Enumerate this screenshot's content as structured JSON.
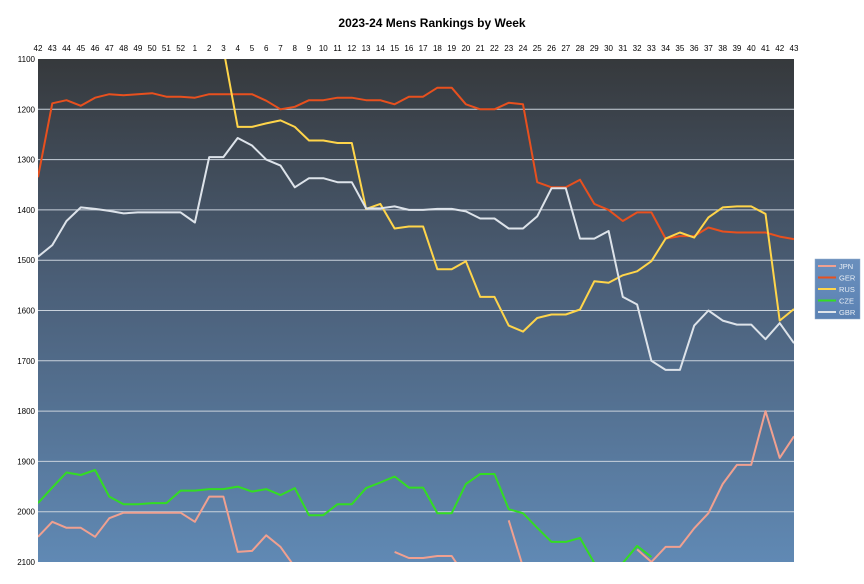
{
  "chart_data": {
    "type": "line",
    "title": "2023-24 Mens Rankings by Week",
    "xlabel": "",
    "ylabel": "",
    "x": [
      "42",
      "43",
      "44",
      "45",
      "46",
      "47",
      "48",
      "49",
      "50",
      "51",
      "52",
      "1",
      "2",
      "3",
      "4",
      "5",
      "6",
      "7",
      "8",
      "9",
      "10",
      "11",
      "12",
      "13",
      "14",
      "15",
      "16",
      "17",
      "18",
      "19",
      "20",
      "21",
      "22",
      "23",
      "24",
      "25",
      "26",
      "27",
      "28",
      "29",
      "30",
      "31",
      "32",
      "33",
      "34",
      "35",
      "36",
      "37",
      "38",
      "39",
      "40",
      "41",
      "42",
      "43"
    ],
    "ylim": [
      1100,
      2100
    ],
    "y_inverted": true,
    "y_ticks": [
      1100,
      1200,
      1300,
      1400,
      1500,
      1600,
      1700,
      1800,
      1900,
      2000,
      2100
    ],
    "grid": true,
    "legend_position": "right",
    "series": [
      {
        "name": "JPN",
        "color": "#f0a090",
        "values": [
          2050,
          2020,
          2032,
          2032,
          2050,
          2013,
          2002,
          2002,
          2002,
          2002,
          2002,
          2020,
          1970,
          1970,
          2080,
          2078,
          2047,
          2070,
          2110,
          null,
          null,
          null,
          null,
          null,
          null,
          2080,
          2092,
          2092,
          2088,
          2088,
          2130,
          null,
          null,
          2017,
          2110,
          null,
          null,
          null,
          null,
          null,
          null,
          null,
          2075,
          2100,
          2070,
          2070,
          2033,
          2003,
          1945,
          1907,
          1907,
          1800,
          1893,
          1850
        ]
      },
      {
        "name": "GER",
        "color": "#e8501e",
        "values": [
          1335,
          1188,
          1182,
          1193,
          1177,
          1170,
          1172,
          1170,
          1168,
          1175,
          1175,
          1177,
          1170,
          1170,
          1170,
          1170,
          1183,
          1200,
          1195,
          1182,
          1182,
          1177,
          1177,
          1182,
          1182,
          1190,
          1175,
          1175,
          1157,
          1157,
          1190,
          1200,
          1200,
          1187,
          1190,
          1345,
          1355,
          1355,
          1340,
          1388,
          1400,
          1422,
          1405,
          1405,
          1457,
          1452,
          1452,
          1435,
          1443,
          1445,
          1445,
          1445,
          1453,
          1458
        ]
      },
      {
        "name": "RUS",
        "color": "#ffd54a",
        "values": [
          null,
          null,
          null,
          null,
          null,
          null,
          null,
          null,
          null,
          null,
          null,
          null,
          null,
          1080,
          1235,
          1235,
          1228,
          1222,
          1235,
          1262,
          1262,
          1267,
          1267,
          1398,
          1388,
          1437,
          1433,
          1433,
          1518,
          1518,
          1502,
          1573,
          1573,
          1630,
          1642,
          1615,
          1608,
          1608,
          1598,
          1542,
          1545,
          1530,
          1522,
          1502,
          1457,
          1445,
          1455,
          1415,
          1395,
          1393,
          1393,
          1408,
          1620,
          1597
        ]
      },
      {
        "name": "CZE",
        "color": "#33dd22",
        "values": [
          1983,
          1952,
          1922,
          1927,
          1917,
          1970,
          1985,
          1985,
          1983,
          1983,
          1958,
          1958,
          1955,
          1955,
          1950,
          1960,
          1955,
          1967,
          1953,
          2007,
          2007,
          1985,
          1985,
          1953,
          1942,
          1930,
          1952,
          1952,
          2003,
          2003,
          1945,
          1925,
          1925,
          1995,
          2003,
          2032,
          2060,
          2060,
          2052,
          2102,
          null,
          2102,
          2068,
          2090,
          null,
          null,
          null,
          null,
          null,
          null,
          null,
          null,
          null,
          null
        ]
      },
      {
        "name": "GBR",
        "color": "#dde3ea",
        "values": [
          1493,
          1470,
          1422,
          1395,
          1398,
          1402,
          1407,
          1405,
          1405,
          1405,
          1405,
          1425,
          1295,
          1295,
          1257,
          1272,
          1300,
          1312,
          1355,
          1337,
          1337,
          1345,
          1345,
          1397,
          1397,
          1393,
          1400,
          1400,
          1398,
          1398,
          1403,
          1417,
          1417,
          1437,
          1437,
          1413,
          1357,
          1357,
          1457,
          1457,
          1442,
          1573,
          1588,
          1700,
          1718,
          1718,
          1630,
          1600,
          1620,
          1628,
          1628,
          1657,
          1625,
          1665
        ]
      }
    ]
  }
}
